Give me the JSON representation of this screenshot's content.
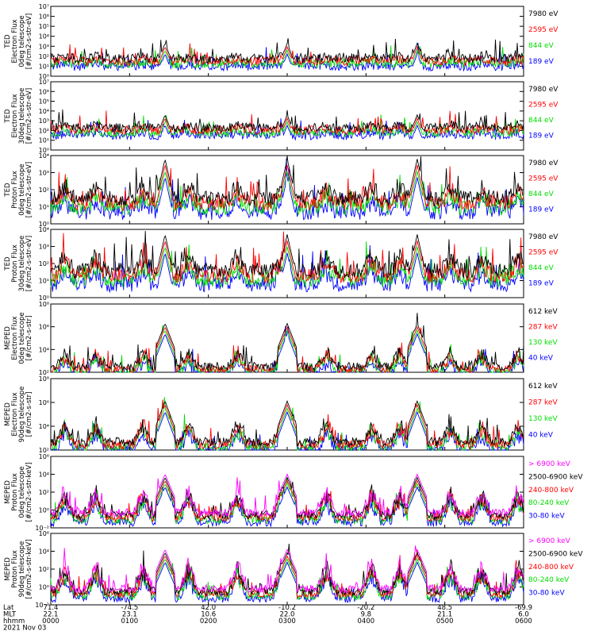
{
  "chart_data": [
    {
      "type": "line",
      "ylabel_lines": [
        "TED",
        "Electron Flux",
        "0deg telescope",
        "[#/cm2-s-str-eV]"
      ],
      "ylog": true,
      "yticks": [
        "10⁰",
        "10¹",
        "10²",
        "10³",
        "10⁴",
        "10⁵",
        "10⁶",
        "10⁷"
      ],
      "series": [
        {
          "name": "7980 eV",
          "color": "#000000"
        },
        {
          "name": "2595 eV",
          "color": "#ff0000"
        },
        {
          "name": "844 eV",
          "color": "#00dd00"
        },
        {
          "name": "189 eV",
          "color": "#0000ff"
        }
      ],
      "profile": {
        "base": 1.8,
        "peak": 3.3,
        "high": 2.0
      }
    },
    {
      "type": "line",
      "ylabel_lines": [
        "TED",
        "Electron Flux",
        "30deg telescope",
        "[#/cm2-s-str-eV]"
      ],
      "ylog": true,
      "yticks": [
        "10⁰",
        "10¹",
        "10²",
        "10³",
        "10⁴",
        "10⁵",
        "10⁶",
        "10⁷"
      ],
      "series": [
        {
          "name": "7980 eV",
          "color": "#000000"
        },
        {
          "name": "2595 eV",
          "color": "#ff0000"
        },
        {
          "name": "844 eV",
          "color": "#00dd00"
        },
        {
          "name": "189 eV",
          "color": "#0000ff"
        }
      ],
      "profile": {
        "base": 2.3,
        "peak": 3.6,
        "high": 2.6
      }
    },
    {
      "type": "line",
      "ylabel_lines": [
        "TED",
        "Proton Flux",
        "0deg telescope",
        "[#/cm2-s-str-eV]"
      ],
      "ylog": true,
      "yticks": [
        "10⁰",
        "10¹",
        "10²",
        "10³",
        "10⁴"
      ],
      "series": [
        {
          "name": "7980 eV",
          "color": "#000000"
        },
        {
          "name": "2595 eV",
          "color": "#ff0000"
        },
        {
          "name": "844 eV",
          "color": "#00dd00"
        },
        {
          "name": "189 eV",
          "color": "#0000ff"
        }
      ],
      "profile": {
        "base": 1.5,
        "peak": 3.8,
        "high": 2.2
      }
    },
    {
      "type": "line",
      "ylabel_lines": [
        "TED",
        "Proton Flux",
        "30deg telescope",
        "[#/cm2-s-str-eV]"
      ],
      "ylog": true,
      "yticks": [
        "10⁰",
        "10¹",
        "10²",
        "10³",
        "10⁴"
      ],
      "series": [
        {
          "name": "7980 eV",
          "color": "#000000"
        },
        {
          "name": "2595 eV",
          "color": "#ff0000"
        },
        {
          "name": "844 eV",
          "color": "#00dd00"
        },
        {
          "name": "189 eV",
          "color": "#0000ff"
        }
      ],
      "profile": {
        "base": 1.6,
        "peak": 3.7,
        "high": 2.4
      }
    },
    {
      "type": "line",
      "ylabel_lines": [
        "MEPED",
        "Electron Flux",
        "0deg telescope",
        "[#/cm2-s-str]"
      ],
      "ylog": true,
      "yticks": [
        "10²",
        "10⁴",
        "10⁶",
        "10⁸"
      ],
      "series": [
        {
          "name": "612 keV",
          "color": "#000000"
        },
        {
          "name": "287 keV",
          "color": "#ff0000"
        },
        {
          "name": "130 keV",
          "color": "#00dd00"
        },
        {
          "name": "40 keV",
          "color": "#0000ff"
        }
      ],
      "profile": {
        "base": 1.6,
        "peak": 6.0,
        "high": 3.0
      }
    },
    {
      "type": "line",
      "ylabel_lines": [
        "MEPED",
        "Electron Flux",
        "90deg telescope",
        "[#/cm2-s-str]"
      ],
      "ylog": true,
      "yticks": [
        "10²",
        "10⁴",
        "10⁶",
        "10⁸"
      ],
      "series": [
        {
          "name": "612 keV",
          "color": "#000000"
        },
        {
          "name": "287 keV",
          "color": "#ff0000"
        },
        {
          "name": "130 keV",
          "color": "#00dd00"
        },
        {
          "name": "40 keV",
          "color": "#0000ff"
        }
      ],
      "profile": {
        "base": 1.8,
        "peak": 5.8,
        "high": 3.5
      }
    },
    {
      "type": "line",
      "ylabel_lines": [
        "MEPED",
        "Proton Flux",
        "0deg telescope",
        "[#/cm2-s-str-keV]"
      ],
      "ylog": true,
      "yticks": [
        "10⁻²",
        "10⁰",
        "10²",
        "10⁴",
        "10⁶"
      ],
      "series": [
        {
          "name": "> 6900 keV",
          "color": "#ff00ff"
        },
        {
          "name": "2500-6900 keV",
          "color": "#000000"
        },
        {
          "name": "240-800 keV",
          "color": "#ff0000"
        },
        {
          "name": "80-240 keV",
          "color": "#00dd00"
        },
        {
          "name": "30-80 keV",
          "color": "#0000ff"
        }
      ],
      "profile": {
        "base": 0.2,
        "peak": 4.0,
        "high": 2.5
      }
    },
    {
      "type": "line",
      "ylabel_lines": [
        "MEPED",
        "Proton Flux",
        "90deg telescope",
        "[#/cm2-s-str-keV]"
      ],
      "ylog": true,
      "yticks": [
        "10⁻²",
        "10⁰",
        "10²",
        "10⁴",
        "10⁶"
      ],
      "series": [
        {
          "name": "> 6900 keV",
          "color": "#ff00ff"
        },
        {
          "name": "2500-6900 keV",
          "color": "#000000"
        },
        {
          "name": "240-800 keV",
          "color": "#ff0000"
        },
        {
          "name": "80-240 keV",
          "color": "#00dd00"
        },
        {
          "name": "30-80 keV",
          "color": "#0000ff"
        }
      ],
      "profile": {
        "base": 0.3,
        "peak": 4.2,
        "high": 2.8
      }
    }
  ],
  "x_axis": {
    "row_labels": [
      "Lat",
      "MLT",
      "hhmm",
      "2021 Nov 03"
    ],
    "ticks": [
      {
        "lat": "71.4",
        "mlt": "22.1",
        "hhmm": "0000"
      },
      {
        "lat": "-74.5",
        "mlt": "23.1",
        "hhmm": "0100"
      },
      {
        "lat": "42.0",
        "mlt": "10.6",
        "hhmm": "0200"
      },
      {
        "lat": "-10.2",
        "mlt": "22.0",
        "hhmm": "0300"
      },
      {
        "lat": "-20.2",
        "mlt": "9.8",
        "hhmm": "0400"
      },
      {
        "lat": "48.5",
        "mlt": "21.1",
        "hhmm": "0500"
      },
      {
        "lat": "-69.9",
        "mlt": "6.0",
        "hhmm": "0600"
      }
    ]
  },
  "pass_centers_hours": [
    0.18,
    0.57,
    1.17,
    1.75,
    2.37,
    2.93,
    3.5,
    4.07,
    4.43,
    5.07,
    5.47,
    5.93
  ],
  "auroral_peaks_hours": [
    1.45,
    3.0,
    4.65
  ]
}
